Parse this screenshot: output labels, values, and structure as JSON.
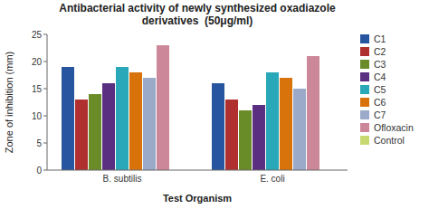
{
  "chart_data": {
    "type": "bar",
    "title": "Antibacterial activity of newly synthesized oxadiazole\nderivatives  (50μg/ml)",
    "xlabel": "Test Organism",
    "ylabel": "Zone of inhibition (mm)",
    "categories": [
      "B. subtilis",
      "E. coli"
    ],
    "series": [
      {
        "name": "C1",
        "color": "#2855A0",
        "values": [
          19,
          16
        ]
      },
      {
        "name": "C2",
        "color": "#B03030",
        "values": [
          13,
          13
        ]
      },
      {
        "name": "C3",
        "color": "#6A8C28",
        "values": [
          14,
          11
        ]
      },
      {
        "name": "C4",
        "color": "#5A2E80",
        "values": [
          16,
          12
        ]
      },
      {
        "name": "C5",
        "color": "#28A8B8",
        "values": [
          19,
          18
        ]
      },
      {
        "name": "C6",
        "color": "#D8720A",
        "values": [
          18,
          17
        ]
      },
      {
        "name": "C7",
        "color": "#9AAAC8",
        "values": [
          17,
          15
        ]
      },
      {
        "name": "Ofloxacin",
        "color": "#CC8899",
        "values": [
          23,
          21
        ]
      },
      {
        "name": "Control",
        "color": "#C8D870",
        "values": [
          0,
          0
        ]
      }
    ],
    "ylim": [
      0,
      25
    ],
    "yticks": [
      0,
      5,
      10,
      15,
      20,
      25
    ],
    "grid": false,
    "legend": "right"
  }
}
